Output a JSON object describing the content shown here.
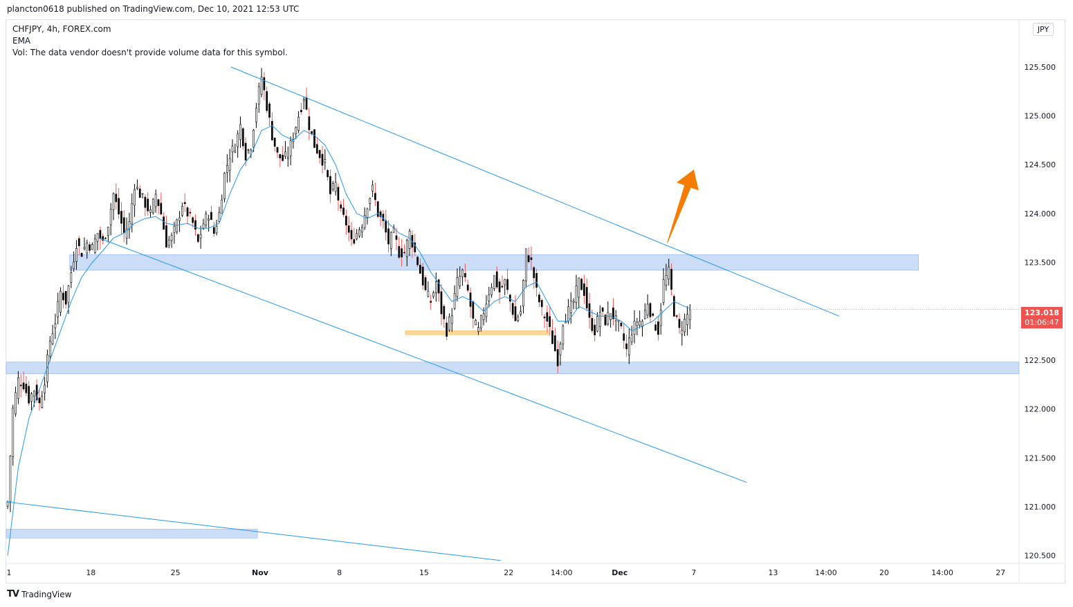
{
  "header": {
    "publish_line": "plancton0618 published on TradingView.com, Dec 10, 2021 12:53 UTC"
  },
  "legend": {
    "symbol_line": "CHFJPY, 4h, FOREX.com",
    "indicator": "EMA",
    "volume_note": "Vol: The data vendor doesn't provide volume data for this symbol."
  },
  "price_axis": {
    "currency": "JPY"
  },
  "last_price": {
    "value": "123.018",
    "countdown": "01:06:47",
    "color": "#ef5350"
  },
  "footer": {
    "brand": "TradingView",
    "logo_icon": "tradingview-logo-icon"
  },
  "colors": {
    "up": "#26a69a",
    "down": "#ef5350",
    "ema": "#2196f3",
    "trendline": "#2196f3",
    "zone": "#bbd2f5",
    "arrow": "#f57c00",
    "support_small": "#ffcc80"
  },
  "chart_data": {
    "type": "candlestick",
    "symbol": "CHFJPY",
    "interval": "4h",
    "y_ticks": [
      120.5,
      121.0,
      121.5,
      122.0,
      122.5,
      123.0,
      123.5,
      124.0,
      124.5,
      125.0,
      125.5
    ],
    "y_tick_labels": [
      "120.500",
      "121.000",
      "121.500",
      "122.000",
      "122.500",
      "123.000",
      "123.500",
      "124.000",
      "124.500",
      "125.000",
      "125.500"
    ],
    "ylim": [
      120.42,
      125.98
    ],
    "x_tick_labels": [
      {
        "label": "1",
        "bar": 0
      },
      {
        "label": "18",
        "bar": 32
      },
      {
        "label": "25",
        "bar": 64
      },
      {
        "label": "Nov",
        "bar": 96
      },
      {
        "label": "8",
        "bar": 126
      },
      {
        "label": "15",
        "bar": 158
      },
      {
        "label": "22",
        "bar": 190
      },
      {
        "label": "14:00",
        "bar": 210
      },
      {
        "label": "Dec",
        "bar": 232
      },
      {
        "label": "7",
        "bar": 260
      },
      {
        "label": "13",
        "bar": 290
      },
      {
        "label": "14:00",
        "bar": 310
      },
      {
        "label": "20",
        "bar": 332
      },
      {
        "label": "14:00",
        "bar": 354
      },
      {
        "label": "27",
        "bar": 376
      }
    ],
    "bar_span": 383,
    "visible_bars": 280,
    "close_points": [
      [
        0,
        121.05
      ],
      [
        2,
        122.0
      ],
      [
        4,
        122.3
      ],
      [
        6,
        122.25
      ],
      [
        8,
        122.1
      ],
      [
        10,
        122.2
      ],
      [
        12,
        122.05
      ],
      [
        14,
        122.3
      ],
      [
        16,
        122.7
      ],
      [
        18,
        122.9
      ],
      [
        20,
        123.2
      ],
      [
        22,
        123.1
      ],
      [
        24,
        123.4
      ],
      [
        26,
        123.7
      ],
      [
        28,
        123.6
      ],
      [
        30,
        123.7
      ],
      [
        32,
        123.65
      ],
      [
        34,
        123.8
      ],
      [
        36,
        123.7
      ],
      [
        38,
        123.9
      ],
      [
        40,
        124.2
      ],
      [
        42,
        124.0
      ],
      [
        44,
        123.8
      ],
      [
        46,
        123.9
      ],
      [
        48,
        124.3
      ],
      [
        50,
        124.2
      ],
      [
        52,
        124.1
      ],
      [
        54,
        124.0
      ],
      [
        56,
        124.2
      ],
      [
        58,
        124.0
      ],
      [
        60,
        123.7
      ],
      [
        62,
        123.75
      ],
      [
        64,
        123.9
      ],
      [
        66,
        124.1
      ],
      [
        68,
        124.0
      ],
      [
        70,
        123.9
      ],
      [
        72,
        123.7
      ],
      [
        74,
        123.9
      ],
      [
        76,
        124.0
      ],
      [
        78,
        123.8
      ],
      [
        80,
        124.0
      ],
      [
        82,
        124.4
      ],
      [
        84,
        124.6
      ],
      [
        86,
        124.7
      ],
      [
        88,
        124.9
      ],
      [
        90,
        124.6
      ],
      [
        92,
        124.7
      ],
      [
        94,
        125.1
      ],
      [
        96,
        125.4
      ],
      [
        98,
        125.1
      ],
      [
        100,
        124.8
      ],
      [
        102,
        124.6
      ],
      [
        104,
        124.55
      ],
      [
        106,
        124.6
      ],
      [
        108,
        124.8
      ],
      [
        110,
        125.0
      ],
      [
        112,
        125.2
      ],
      [
        114,
        124.9
      ],
      [
        116,
        124.7
      ],
      [
        118,
        124.6
      ],
      [
        120,
        124.5
      ],
      [
        122,
        124.2
      ],
      [
        124,
        124.3
      ],
      [
        126,
        124.0
      ],
      [
        128,
        123.9
      ],
      [
        130,
        123.7
      ],
      [
        132,
        123.8
      ],
      [
        134,
        123.9
      ],
      [
        136,
        124.1
      ],
      [
        138,
        124.25
      ],
      [
        140,
        124.0
      ],
      [
        142,
        123.9
      ],
      [
        144,
        123.7
      ],
      [
        146,
        123.8
      ],
      [
        148,
        123.6
      ],
      [
        150,
        123.6
      ],
      [
        152,
        123.8
      ],
      [
        154,
        123.6
      ],
      [
        156,
        123.4
      ],
      [
        158,
        123.2
      ],
      [
        160,
        123.1
      ],
      [
        162,
        123.3
      ],
      [
        164,
        123.0
      ],
      [
        166,
        122.8
      ],
      [
        168,
        123.0
      ],
      [
        170,
        123.3
      ],
      [
        172,
        123.4
      ],
      [
        174,
        123.2
      ],
      [
        176,
        122.9
      ],
      [
        178,
        122.8
      ],
      [
        180,
        123.0
      ],
      [
        182,
        123.2
      ],
      [
        184,
        123.35
      ],
      [
        186,
        123.2
      ],
      [
        188,
        123.3
      ],
      [
        190,
        123.1
      ],
      [
        192,
        122.9
      ],
      [
        194,
        123.0
      ],
      [
        196,
        123.6
      ],
      [
        198,
        123.5
      ],
      [
        200,
        123.2
      ],
      [
        202,
        123.0
      ],
      [
        204,
        122.9
      ],
      [
        206,
        122.7
      ],
      [
        208,
        122.5
      ],
      [
        210,
        122.9
      ],
      [
        212,
        123.0
      ],
      [
        214,
        123.1
      ],
      [
        216,
        123.3
      ],
      [
        218,
        123.2
      ],
      [
        220,
        122.9
      ],
      [
        222,
        122.8
      ],
      [
        224,
        123.0
      ],
      [
        226,
        122.9
      ],
      [
        228,
        123.0
      ],
      [
        230,
        122.9
      ],
      [
        232,
        122.8
      ],
      [
        234,
        122.6
      ],
      [
        236,
        122.8
      ],
      [
        238,
        122.9
      ],
      [
        240,
        122.9
      ],
      [
        242,
        123.1
      ],
      [
        244,
        122.9
      ],
      [
        246,
        122.8
      ],
      [
        248,
        123.3
      ],
      [
        250,
        123.4
      ],
      [
        252,
        123.0
      ],
      [
        254,
        122.8
      ],
      [
        256,
        122.9
      ],
      [
        258,
        123.018
      ]
    ],
    "ema_points": [
      [
        0,
        120.5
      ],
      [
        4,
        121.4
      ],
      [
        8,
        121.9
      ],
      [
        12,
        122.2
      ],
      [
        16,
        122.5
      ],
      [
        20,
        122.8
      ],
      [
        24,
        123.1
      ],
      [
        28,
        123.35
      ],
      [
        32,
        123.5
      ],
      [
        36,
        123.62
      ],
      [
        40,
        123.75
      ],
      [
        44,
        123.8
      ],
      [
        48,
        123.9
      ],
      [
        52,
        123.95
      ],
      [
        56,
        123.97
      ],
      [
        60,
        123.9
      ],
      [
        64,
        123.88
      ],
      [
        68,
        123.9
      ],
      [
        72,
        123.85
      ],
      [
        76,
        123.85
      ],
      [
        80,
        123.9
      ],
      [
        84,
        124.2
      ],
      [
        88,
        124.45
      ],
      [
        92,
        124.6
      ],
      [
        96,
        124.85
      ],
      [
        100,
        124.9
      ],
      [
        104,
        124.8
      ],
      [
        108,
        124.75
      ],
      [
        112,
        124.85
      ],
      [
        116,
        124.8
      ],
      [
        120,
        124.7
      ],
      [
        124,
        124.5
      ],
      [
        128,
        124.2
      ],
      [
        132,
        124.0
      ],
      [
        136,
        123.95
      ],
      [
        140,
        124.0
      ],
      [
        144,
        123.9
      ],
      [
        148,
        123.8
      ],
      [
        152,
        123.75
      ],
      [
        156,
        123.6
      ],
      [
        160,
        123.4
      ],
      [
        164,
        123.25
      ],
      [
        168,
        123.1
      ],
      [
        172,
        123.15
      ],
      [
        176,
        123.1
      ],
      [
        180,
        123.0
      ],
      [
        184,
        123.1
      ],
      [
        188,
        123.15
      ],
      [
        192,
        123.1
      ],
      [
        196,
        123.25
      ],
      [
        200,
        123.3
      ],
      [
        204,
        123.1
      ],
      [
        208,
        122.9
      ],
      [
        212,
        122.9
      ],
      [
        216,
        123.05
      ],
      [
        220,
        123.0
      ],
      [
        224,
        122.95
      ],
      [
        228,
        122.95
      ],
      [
        232,
        122.9
      ],
      [
        236,
        122.8
      ],
      [
        240,
        122.85
      ],
      [
        244,
        122.9
      ],
      [
        248,
        123.0
      ],
      [
        252,
        123.1
      ],
      [
        256,
        123.05
      ],
      [
        258,
        123.03
      ]
    ],
    "trendlines": [
      {
        "from": [
          85,
          125.5
        ],
        "to": [
          315,
          122.95
        ]
      },
      {
        "from": [
          35,
          123.75
        ],
        "to": [
          280,
          121.25
        ]
      },
      {
        "from": [
          0,
          121.05
        ],
        "to": [
          187,
          120.45
        ]
      }
    ],
    "zones": [
      {
        "from_bar": 24,
        "to_bar": 345,
        "y_top": 123.58,
        "y_bottom": 123.42
      },
      {
        "from_bar": 0,
        "to_bar": 383,
        "y_top": 122.48,
        "y_bottom": 122.36
      },
      {
        "from_bar": 0,
        "to_bar": 95,
        "y_top": 120.77,
        "y_bottom": 120.68
      }
    ],
    "support_box": {
      "from_bar": 151,
      "to_bar": 205,
      "y_top": 122.8,
      "y_bottom": 122.76
    },
    "arrow": {
      "from": [
        250,
        123.7
      ],
      "to": [
        260,
        124.45
      ]
    },
    "last_value": 123.018
  }
}
